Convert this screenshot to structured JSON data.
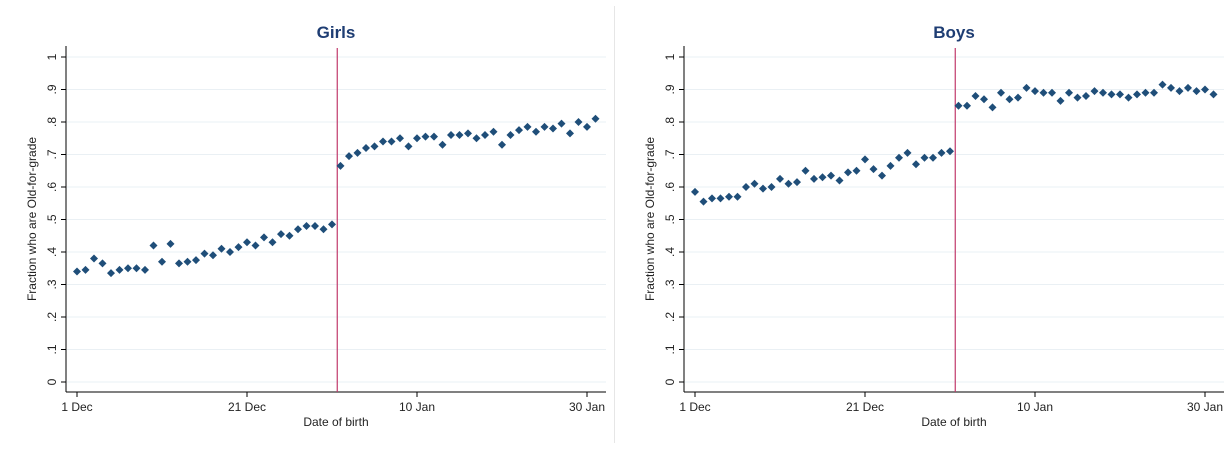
{
  "chart_data": [
    {
      "type": "scatter",
      "title": "Girls",
      "xlabel": "Date of birth",
      "ylabel": "Fraction who are Old-for-grade",
      "ylim": [
        0,
        1
      ],
      "yticks": [
        "0",
        ".1",
        ".2",
        ".3",
        ".4",
        ".5",
        ".6",
        ".7",
        ".8",
        ".9",
        "1"
      ],
      "xticks": [
        "1 Dec",
        "21 Dec",
        "10 Jan",
        "30 Jan"
      ],
      "xlim": [
        "1 Dec",
        "31 Jan"
      ],
      "cutoff": "1 Jan",
      "grid": true,
      "marker_color": "#1f4e79",
      "cutoff_color": "#c0396b",
      "series": [
        {
          "x": [
            "1 Dec",
            "2 Dec",
            "3 Dec",
            "4 Dec",
            "5 Dec",
            "6 Dec",
            "7 Dec",
            "8 Dec",
            "9 Dec",
            "10 Dec",
            "11 Dec",
            "12 Dec",
            "13 Dec",
            "14 Dec",
            "15 Dec",
            "16 Dec",
            "17 Dec",
            "18 Dec",
            "19 Dec",
            "20 Dec",
            "21 Dec",
            "22 Dec",
            "23 Dec",
            "24 Dec",
            "25 Dec",
            "26 Dec",
            "27 Dec",
            "28 Dec",
            "29 Dec",
            "30 Dec",
            "31 Dec",
            "1 Jan",
            "2 Jan",
            "3 Jan",
            "4 Jan",
            "5 Jan",
            "6 Jan",
            "7 Jan",
            "8 Jan",
            "9 Jan",
            "10 Jan",
            "11 Jan",
            "12 Jan",
            "13 Jan",
            "14 Jan",
            "15 Jan",
            "16 Jan",
            "17 Jan",
            "18 Jan",
            "19 Jan",
            "20 Jan",
            "21 Jan",
            "22 Jan",
            "23 Jan",
            "24 Jan",
            "25 Jan",
            "26 Jan",
            "27 Jan",
            "28 Jan",
            "29 Jan",
            "30 Jan",
            "31 Jan"
          ],
          "values": [
            0.34,
            0.345,
            0.38,
            0.365,
            0.335,
            0.345,
            0.35,
            0.35,
            0.345,
            0.42,
            0.37,
            0.425,
            0.365,
            0.37,
            0.375,
            0.395,
            0.39,
            0.41,
            0.4,
            0.415,
            0.43,
            0.42,
            0.445,
            0.43,
            0.455,
            0.45,
            0.47,
            0.48,
            0.48,
            0.47,
            0.485,
            0.665,
            0.695,
            0.705,
            0.72,
            0.725,
            0.74,
            0.74,
            0.75,
            0.725,
            0.75,
            0.755,
            0.755,
            0.73,
            0.76,
            0.76,
            0.765,
            0.75,
            0.76,
            0.77,
            0.73,
            0.76,
            0.775,
            0.785,
            0.77,
            0.785,
            0.78,
            0.795,
            0.765,
            0.8,
            0.785,
            0.81
          ]
        }
      ]
    },
    {
      "type": "scatter",
      "title": "Boys",
      "xlabel": "Date of birth",
      "ylabel": "Fraction who are Old-for-grade",
      "ylim": [
        0,
        1
      ],
      "yticks": [
        "0",
        ".1",
        ".2",
        ".3",
        ".4",
        ".5",
        ".6",
        ".7",
        ".8",
        ".9",
        "1"
      ],
      "xticks": [
        "1 Dec",
        "21 Dec",
        "10 Jan",
        "30 Jan"
      ],
      "xlim": [
        "1 Dec",
        "31 Jan"
      ],
      "cutoff": "1 Jan",
      "grid": true,
      "marker_color": "#1f4e79",
      "cutoff_color": "#c0396b",
      "series": [
        {
          "x": [
            "1 Dec",
            "2 Dec",
            "3 Dec",
            "4 Dec",
            "5 Dec",
            "6 Dec",
            "7 Dec",
            "8 Dec",
            "9 Dec",
            "10 Dec",
            "11 Dec",
            "12 Dec",
            "13 Dec",
            "14 Dec",
            "15 Dec",
            "16 Dec",
            "17 Dec",
            "18 Dec",
            "19 Dec",
            "20 Dec",
            "21 Dec",
            "22 Dec",
            "23 Dec",
            "24 Dec",
            "25 Dec",
            "26 Dec",
            "27 Dec",
            "28 Dec",
            "29 Dec",
            "30 Dec",
            "31 Dec",
            "1 Jan",
            "2 Jan",
            "3 Jan",
            "4 Jan",
            "5 Jan",
            "6 Jan",
            "7 Jan",
            "8 Jan",
            "9 Jan",
            "10 Jan",
            "11 Jan",
            "12 Jan",
            "13 Jan",
            "14 Jan",
            "15 Jan",
            "16 Jan",
            "17 Jan",
            "18 Jan",
            "19 Jan",
            "20 Jan",
            "21 Jan",
            "22 Jan",
            "23 Jan",
            "24 Jan",
            "25 Jan",
            "26 Jan",
            "27 Jan",
            "28 Jan",
            "29 Jan",
            "30 Jan",
            "31 Jan"
          ],
          "values": [
            0.585,
            0.555,
            0.565,
            0.565,
            0.57,
            0.57,
            0.6,
            0.61,
            0.595,
            0.6,
            0.625,
            0.61,
            0.615,
            0.65,
            0.625,
            0.63,
            0.635,
            0.62,
            0.645,
            0.65,
            0.685,
            0.655,
            0.635,
            0.665,
            0.69,
            0.705,
            0.67,
            0.69,
            0.69,
            0.705,
            0.71,
            0.85,
            0.85,
            0.88,
            0.87,
            0.845,
            0.89,
            0.87,
            0.875,
            0.905,
            0.895,
            0.89,
            0.89,
            0.865,
            0.89,
            0.875,
            0.88,
            0.895,
            0.89,
            0.885,
            0.885,
            0.875,
            0.885,
            0.89,
            0.89,
            0.915,
            0.905,
            0.895,
            0.905,
            0.895,
            0.9,
            0.885
          ]
        }
      ]
    }
  ]
}
